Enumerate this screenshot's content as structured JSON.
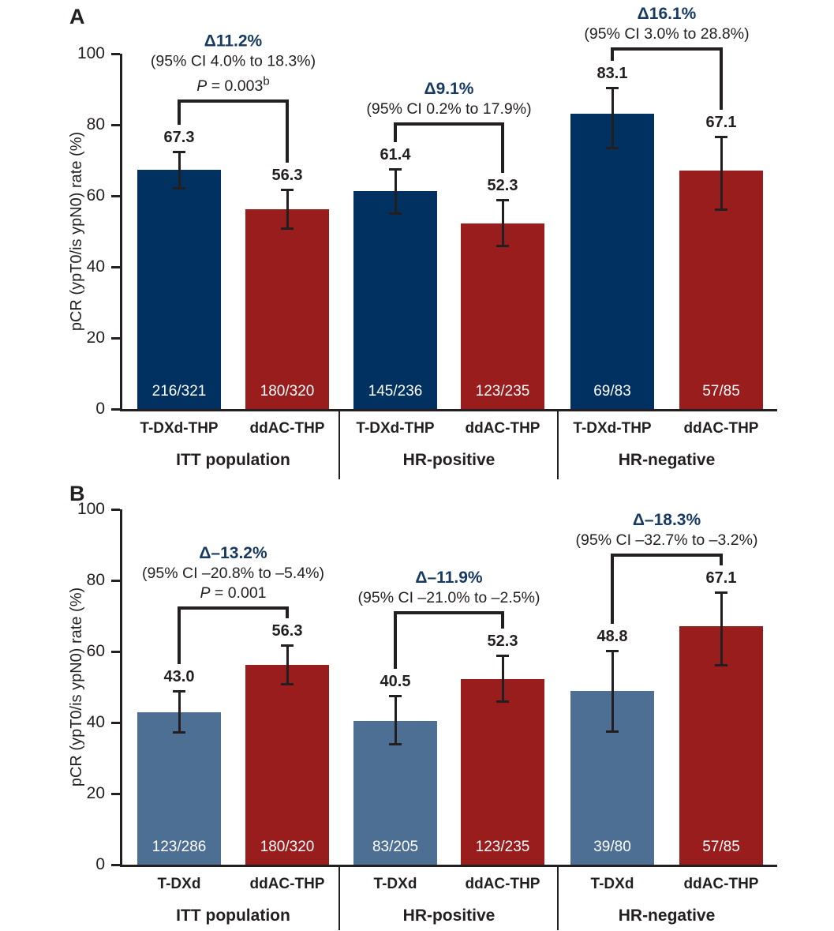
{
  "colors": {
    "tdxd_combo_bar": "#013160",
    "tdxd_mono_bar": "#4d6f93",
    "ddac_bar": "#9a1d1e",
    "delta_text": "#173a63",
    "line": "#231f20",
    "fraction_text": "#ffffff"
  },
  "chart_data": [
    {
      "panel": "A",
      "type": "bar",
      "ylabel": "pCR (ypT0/is ypN0) rate (%)",
      "ylim": [
        0,
        100
      ],
      "yticks": [
        0,
        20,
        40,
        60,
        80,
        100
      ],
      "grid": false,
      "groups": [
        {
          "label": "ITT population",
          "bars": [
            {
              "arm": "T-DXd-THP",
              "value": 67.3,
              "fraction": "216/321",
              "ci_low": 61.9,
              "ci_high": 72.4,
              "color": "#013160"
            },
            {
              "arm": "ddAC-THP",
              "value": 56.3,
              "fraction": "180/320",
              "ci_low": 50.7,
              "ci_high": 61.8,
              "color": "#9a1d1e"
            }
          ],
          "delta": "Δ11.2%",
          "ci_text": "(95% CI 4.0% to 18.3%)",
          "p_text": "P = 0.003",
          "p_sup": "b"
        },
        {
          "label": "HR-positive",
          "bars": [
            {
              "arm": "T-DXd-THP",
              "value": 61.4,
              "fraction": "145/236",
              "ci_low": 54.9,
              "ci_high": 67.6,
              "color": "#013160"
            },
            {
              "arm": "ddAC-THP",
              "value": 52.3,
              "fraction": "123/235",
              "ci_low": 45.7,
              "ci_high": 58.8,
              "color": "#9a1d1e"
            }
          ],
          "delta": "Δ9.1%",
          "ci_text": "(95% CI 0.2% to 17.9%)"
        },
        {
          "label": "HR-negative",
          "bars": [
            {
              "arm": "T-DXd-THP",
              "value": 83.1,
              "fraction": "69/83",
              "ci_low": 73.3,
              "ci_high": 90.5,
              "color": "#013160"
            },
            {
              "arm": "ddAC-THP",
              "value": 67.1,
              "fraction": "57/85",
              "ci_low": 56.0,
              "ci_high": 76.7,
              "color": "#9a1d1e"
            }
          ],
          "delta": "Δ16.1%",
          "ci_text": "(95% CI 3.0% to 28.8%)"
        }
      ]
    },
    {
      "panel": "B",
      "type": "bar",
      "ylabel": "pCR (ypT0/is ypN0) rate (%)",
      "ylim": [
        0,
        100
      ],
      "yticks": [
        0,
        20,
        40,
        60,
        80,
        100
      ],
      "grid": false,
      "groups": [
        {
          "label": "ITT population",
          "bars": [
            {
              "arm": "T-DXd",
              "value": 43.0,
              "fraction": "123/286",
              "ci_low": 37.2,
              "ci_high": 49.0,
              "color": "#4d6f93"
            },
            {
              "arm": "ddAC-THP",
              "value": 56.3,
              "fraction": "180/320",
              "ci_low": 50.7,
              "ci_high": 61.8,
              "color": "#9a1d1e"
            }
          ],
          "delta": "Δ–13.2%",
          "ci_text": "(95% CI –20.8% to –5.4%)",
          "p_text": "P = 0.001"
        },
        {
          "label": "HR-positive",
          "bars": [
            {
              "arm": "T-DXd",
              "value": 40.5,
              "fraction": "83/205",
              "ci_low": 33.7,
              "ci_high": 47.6,
              "color": "#4d6f93"
            },
            {
              "arm": "ddAC-THP",
              "value": 52.3,
              "fraction": "123/235",
              "ci_low": 45.7,
              "ci_high": 58.8,
              "color": "#9a1d1e"
            }
          ],
          "delta": "Δ–11.9%",
          "ci_text": "(95% CI –21.0% to –2.5%)"
        },
        {
          "label": "HR-negative",
          "bars": [
            {
              "arm": "T-DXd",
              "value": 48.8,
              "fraction": "39/80",
              "ci_low": 37.4,
              "ci_high": 60.2,
              "color": "#4d6f93"
            },
            {
              "arm": "ddAC-THP",
              "value": 67.1,
              "fraction": "57/85",
              "ci_low": 56.0,
              "ci_high": 76.7,
              "color": "#9a1d1e"
            }
          ],
          "delta": "Δ–18.3%",
          "ci_text": "(95% CI –32.7% to –3.2%)"
        }
      ]
    }
  ]
}
